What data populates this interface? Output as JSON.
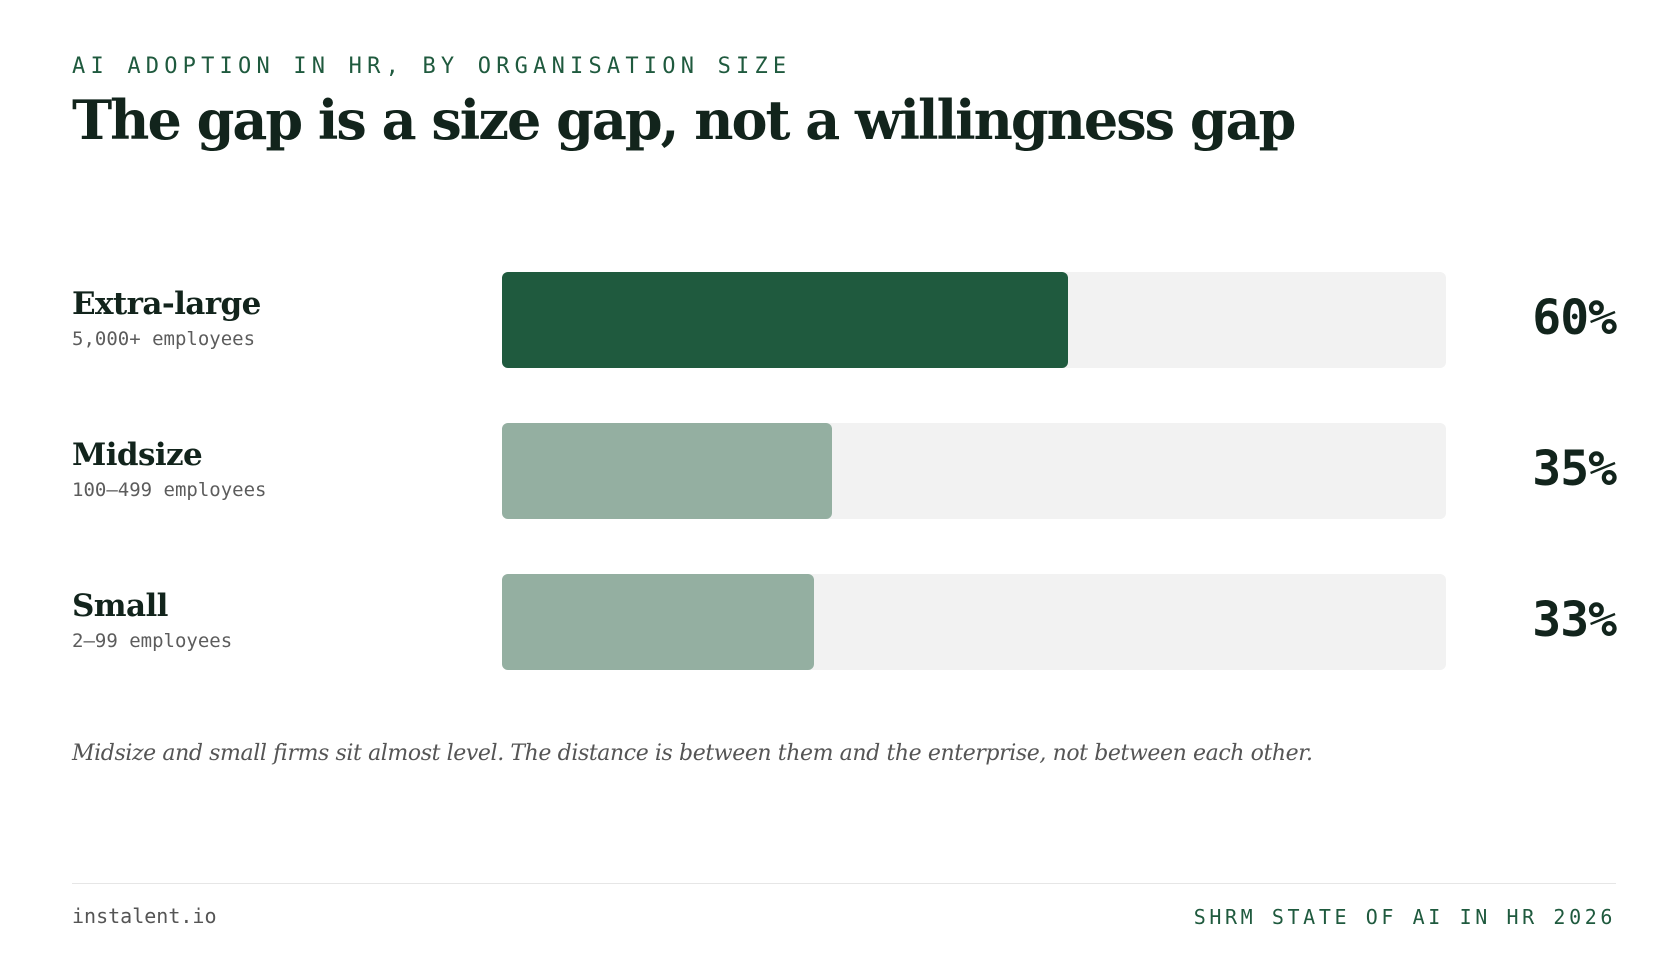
{
  "header": {
    "eyebrow": "AI ADOPTION IN HR, BY ORGANISATION SIZE",
    "title": "The gap is a size gap, not a willingness gap"
  },
  "colors": {
    "highlight_bar": "#1f5a3e",
    "muted_bar": "#94afa1",
    "track": "#f2f2f2"
  },
  "chart_data": {
    "type": "bar",
    "orientation": "horizontal",
    "categories": [
      "Extra-large",
      "Midsize",
      "Small"
    ],
    "category_subtitles": [
      "5,000+ employees",
      "100–499 employees",
      "2–99 employees"
    ],
    "values": [
      60,
      35,
      33
    ],
    "value_labels": [
      "60%",
      "35%",
      "33%"
    ],
    "xlim": [
      0,
      100
    ],
    "highlighted": "Extra-large",
    "grid": false
  },
  "note": "Midsize and small firms sit almost level. The distance is between them and the enterprise, not between each other.",
  "footer": {
    "left": "instalent.io",
    "right": "SHRM STATE OF AI IN HR 2026"
  }
}
